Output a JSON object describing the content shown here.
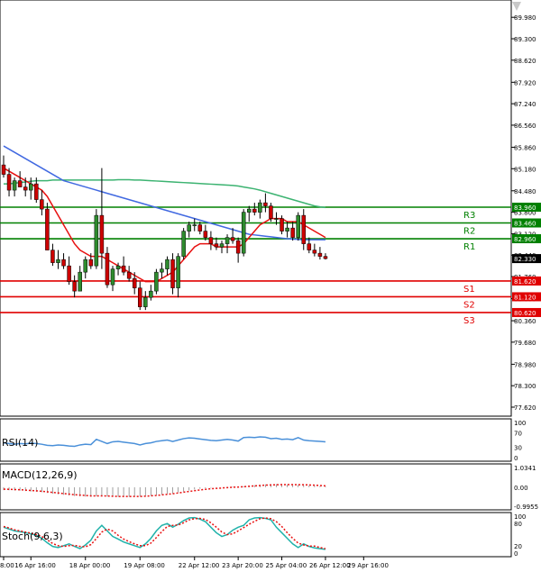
{
  "chart_data": {
    "type": "candlestick",
    "main": {
      "yticks": [
        "89.980",
        "89.300",
        "88.620",
        "87.920",
        "87.240",
        "86.560",
        "85.860",
        "85.180",
        "84.480",
        "83.800",
        "83.120",
        "82.440",
        "81.760",
        "81.060",
        "80.360",
        "79.680",
        "78.980",
        "78.300",
        "77.620"
      ],
      "ylim": [
        77.62,
        90.3
      ],
      "levels": [
        {
          "name": "R3",
          "value": 83.96,
          "value_label": "83.960",
          "color": "#008000"
        },
        {
          "name": "R2",
          "value": 83.46,
          "value_label": "83.460",
          "color": "#008000"
        },
        {
          "name": "R1",
          "value": 82.96,
          "value_label": "82.960",
          "color": "#008000"
        },
        {
          "name": "S1",
          "value": 81.62,
          "value_label": "81.620",
          "color": "#e00000"
        },
        {
          "name": "S2",
          "value": 81.12,
          "value_label": "81.120",
          "color": "#e00000"
        },
        {
          "name": "S3",
          "value": 80.62,
          "value_label": "80.620",
          "color": "#e00000"
        }
      ],
      "current_price": "82.330",
      "candles": [
        [
          85.3,
          85.6,
          84.9,
          85.0
        ],
        [
          85.0,
          85.2,
          84.3,
          84.5
        ],
        [
          84.5,
          84.9,
          84.3,
          84.8
        ],
        [
          84.8,
          85.1,
          84.6,
          84.6
        ],
        [
          84.6,
          84.9,
          84.3,
          84.5
        ],
        [
          84.5,
          84.9,
          84.2,
          84.7
        ],
        [
          84.7,
          84.9,
          84.1,
          84.2
        ],
        [
          84.2,
          84.5,
          83.7,
          83.9
        ],
        [
          83.9,
          84.1,
          82.6,
          82.6
        ],
        [
          82.6,
          82.8,
          82.1,
          82.2
        ],
        [
          82.2,
          82.6,
          82.0,
          82.3
        ],
        [
          82.3,
          82.5,
          82.0,
          82.1
        ],
        [
          82.1,
          82.4,
          81.5,
          81.6
        ],
        [
          81.6,
          81.8,
          81.1,
          81.3
        ],
        [
          81.3,
          82.1,
          81.3,
          81.9
        ],
        [
          81.9,
          82.4,
          81.7,
          82.3
        ],
        [
          82.3,
          82.5,
          82.0,
          82.1
        ],
        [
          82.1,
          83.9,
          82.0,
          83.7
        ],
        [
          83.7,
          85.2,
          82.0,
          82.5
        ],
        [
          82.5,
          82.7,
          81.4,
          81.5
        ],
        [
          81.5,
          82.1,
          81.3,
          82.0
        ],
        [
          82.0,
          82.2,
          81.8,
          82.1
        ],
        [
          82.1,
          82.4,
          81.8,
          81.9
        ],
        [
          81.9,
          82.1,
          81.6,
          81.7
        ],
        [
          81.7,
          81.9,
          81.2,
          81.4
        ],
        [
          81.4,
          81.6,
          80.7,
          80.8
        ],
        [
          80.8,
          81.3,
          80.7,
          81.1
        ],
        [
          81.1,
          81.5,
          81.0,
          81.3
        ],
        [
          81.3,
          82.0,
          81.2,
          81.9
        ],
        [
          81.9,
          82.2,
          81.7,
          82.0
        ],
        [
          82.0,
          82.4,
          81.8,
          82.3
        ],
        [
          82.3,
          82.5,
          81.2,
          81.4
        ],
        [
          81.4,
          82.5,
          81.1,
          82.4
        ],
        [
          82.4,
          83.3,
          82.3,
          83.2
        ],
        [
          83.2,
          83.5,
          83.0,
          83.4
        ],
        [
          83.4,
          83.6,
          83.2,
          83.4
        ],
        [
          83.4,
          83.5,
          83.1,
          83.2
        ],
        [
          83.2,
          83.4,
          82.9,
          83.0
        ],
        [
          83.0,
          83.2,
          82.6,
          82.8
        ],
        [
          82.8,
          83.0,
          82.6,
          82.7
        ],
        [
          82.7,
          82.9,
          82.5,
          82.8
        ],
        [
          82.8,
          83.1,
          82.5,
          83.0
        ],
        [
          83.0,
          83.3,
          82.8,
          82.9
        ],
        [
          82.9,
          83.0,
          82.2,
          82.5
        ],
        [
          82.5,
          83.9,
          82.4,
          83.8
        ],
        [
          83.8,
          84.0,
          83.5,
          83.9
        ],
        [
          83.9,
          84.1,
          83.7,
          83.8
        ],
        [
          83.8,
          84.2,
          83.6,
          84.1
        ],
        [
          84.1,
          84.4,
          83.8,
          84.0
        ],
        [
          84.0,
          84.1,
          83.5,
          83.6
        ],
        [
          83.6,
          83.8,
          83.4,
          83.6
        ],
        [
          83.6,
          83.7,
          83.1,
          83.2
        ],
        [
          83.2,
          83.5,
          83.0,
          83.3
        ],
        [
          83.3,
          83.5,
          82.9,
          83.0
        ],
        [
          83.0,
          83.8,
          82.9,
          83.7
        ],
        [
          83.7,
          83.9,
          82.6,
          82.8
        ],
        [
          82.8,
          83.0,
          82.5,
          82.6
        ],
        [
          82.6,
          82.8,
          82.4,
          82.5
        ],
        [
          82.5,
          82.7,
          82.3,
          82.4
        ],
        [
          82.4,
          82.5,
          82.3,
          82.33
        ]
      ],
      "ma_fast": [
        85.2,
        85.1,
        85.0,
        84.9,
        84.8,
        84.7,
        84.6,
        84.5,
        84.3,
        84.0,
        83.7,
        83.4,
        83.1,
        82.8,
        82.6,
        82.5,
        82.4,
        82.4,
        82.4,
        82.3,
        82.2,
        82.1,
        82.0,
        81.9,
        81.8,
        81.7,
        81.6,
        81.6,
        81.6,
        81.7,
        81.8,
        81.9,
        82.1,
        82.3,
        82.5,
        82.7,
        82.8,
        82.8,
        82.8,
        82.7,
        82.7,
        82.7,
        82.7,
        82.7,
        82.8,
        83.0,
        83.2,
        83.4,
        83.5,
        83.6,
        83.6,
        83.6,
        83.5,
        83.5,
        83.5,
        83.4,
        83.3,
        83.2,
        83.1,
        83.0
      ],
      "ma_slow": [
        85.9,
        85.8,
        85.7,
        85.6,
        85.5,
        85.4,
        85.3,
        85.2,
        85.1,
        85.0,
        84.9,
        84.8,
        84.75,
        84.7,
        84.65,
        84.6,
        84.55,
        84.5,
        84.45,
        84.4,
        84.35,
        84.3,
        84.25,
        84.2,
        84.15,
        84.1,
        84.05,
        84.0,
        83.95,
        83.9,
        83.85,
        83.8,
        83.75,
        83.7,
        83.65,
        83.6,
        83.55,
        83.5,
        83.45,
        83.4,
        83.35,
        83.3,
        83.25,
        83.2,
        83.15,
        83.1,
        83.08,
        83.06,
        83.04,
        83.02,
        83.0,
        82.98,
        82.96,
        82.95,
        82.94,
        82.93,
        82.93,
        82.93,
        82.93,
        82.93
      ],
      "ma_long": [
        84.7,
        84.7,
        84.72,
        84.74,
        84.76,
        84.78,
        84.8,
        84.8,
        84.8,
        84.82,
        84.82,
        84.82,
        84.82,
        84.82,
        84.82,
        84.82,
        84.82,
        84.82,
        84.82,
        84.82,
        84.82,
        84.83,
        84.83,
        84.83,
        84.82,
        84.82,
        84.81,
        84.8,
        84.79,
        84.78,
        84.77,
        84.76,
        84.75,
        84.74,
        84.73,
        84.72,
        84.71,
        84.7,
        84.69,
        84.68,
        84.67,
        84.66,
        84.65,
        84.63,
        84.6,
        84.57,
        84.54,
        84.5,
        84.45,
        84.4,
        84.35,
        84.3,
        84.25,
        84.2,
        84.15,
        84.1,
        84.05,
        84.0,
        83.97,
        83.95
      ]
    },
    "xticks": [
      {
        "label": "8:00",
        "index": 0
      },
      {
        "label": "16 Apr 16:00",
        "index": 5
      },
      {
        "label": "18 Apr 00:00",
        "index": 15
      },
      {
        "label": "19 Apr 08:00",
        "index": 25
      },
      {
        "label": "22 Apr 12:00",
        "index": 35
      },
      {
        "label": "23 Apr 20:00",
        "index": 43
      },
      {
        "label": "25 Apr 04:00",
        "index": 51
      },
      {
        "label": "26 Apr 12:00",
        "index": 59
      },
      {
        "label": "29 Apr 16:00",
        "index": 66
      }
    ],
    "rsi": {
      "title": "RSI(14)",
      "yticks": [
        "100",
        "70",
        "30",
        "0"
      ],
      "values": [
        42,
        40,
        38,
        40,
        39,
        41,
        40,
        38,
        35,
        34,
        36,
        35,
        33,
        32,
        36,
        38,
        37,
        52,
        46,
        40,
        45,
        46,
        44,
        42,
        40,
        36,
        40,
        42,
        46,
        48,
        50,
        46,
        50,
        54,
        56,
        55,
        53,
        51,
        49,
        48,
        50,
        52,
        50,
        47,
        57,
        58,
        57,
        59,
        58,
        54,
        55,
        52,
        53,
        51,
        57,
        50,
        48,
        47,
        46,
        45
      ]
    },
    "macd": {
      "title": "MACD(12,26,9)",
      "yticks": [
        "1.0341",
        "0.00",
        "-0.9955"
      ],
      "histogram": [
        -0.15,
        -0.16,
        -0.17,
        -0.18,
        -0.2,
        -0.22,
        -0.24,
        -0.26,
        -0.3,
        -0.34,
        -0.37,
        -0.4,
        -0.43,
        -0.46,
        -0.48,
        -0.49,
        -0.5,
        -0.47,
        -0.46,
        -0.48,
        -0.49,
        -0.5,
        -0.5,
        -0.5,
        -0.49,
        -0.49,
        -0.47,
        -0.45,
        -0.42,
        -0.39,
        -0.35,
        -0.32,
        -0.27,
        -0.22,
        -0.17,
        -0.12,
        -0.08,
        -0.05,
        -0.03,
        -0.01,
        0.0,
        0.02,
        0.03,
        0.03,
        0.05,
        0.08,
        0.11,
        0.13,
        0.15,
        0.16,
        0.16,
        0.15,
        0.14,
        0.13,
        0.13,
        0.12,
        0.1,
        0.08,
        0.06,
        0.04
      ],
      "signal": [
        -0.1,
        -0.11,
        -0.12,
        -0.13,
        -0.15,
        -0.17,
        -0.19,
        -0.21,
        -0.24,
        -0.27,
        -0.3,
        -0.33,
        -0.36,
        -0.39,
        -0.41,
        -0.43,
        -0.45,
        -0.45,
        -0.45,
        -0.46,
        -0.47,
        -0.48,
        -0.48,
        -0.48,
        -0.48,
        -0.48,
        -0.47,
        -0.45,
        -0.43,
        -0.4,
        -0.37,
        -0.34,
        -0.3,
        -0.26,
        -0.22,
        -0.18,
        -0.14,
        -0.11,
        -0.08,
        -0.06,
        -0.04,
        -0.02,
        0.0,
        0.01,
        0.03,
        0.05,
        0.07,
        0.09,
        0.11,
        0.12,
        0.13,
        0.14,
        0.14,
        0.14,
        0.13,
        0.13,
        0.12,
        0.11,
        0.09,
        0.07
      ]
    },
    "stoch": {
      "title": "Stoch(9,6,3)",
      "yticks": [
        "100",
        "80",
        "20",
        "0"
      ],
      "k": [
        70,
        65,
        60,
        58,
        55,
        52,
        48,
        40,
        28,
        18,
        15,
        20,
        25,
        18,
        12,
        22,
        35,
        60,
        75,
        60,
        45,
        38,
        30,
        25,
        20,
        15,
        25,
        40,
        60,
        75,
        80,
        70,
        78,
        88,
        95,
        96,
        92,
        85,
        70,
        55,
        45,
        50,
        62,
        70,
        75,
        90,
        95,
        96,
        94,
        90,
        70,
        55,
        40,
        25,
        15,
        25,
        18,
        14,
        12,
        10
      ],
      "d": [
        72,
        68,
        63,
        60,
        57,
        54,
        50,
        45,
        36,
        26,
        20,
        18,
        20,
        21,
        18,
        17,
        23,
        39,
        57,
        65,
        60,
        48,
        38,
        31,
        25,
        20,
        20,
        27,
        42,
        58,
        72,
        75,
        76,
        82,
        90,
        93,
        94,
        91,
        82,
        70,
        57,
        50,
        52,
        60,
        69,
        78,
        86,
        93,
        95,
        93,
        85,
        72,
        55,
        40,
        27,
        22,
        19,
        19,
        15,
        12
      ]
    }
  }
}
